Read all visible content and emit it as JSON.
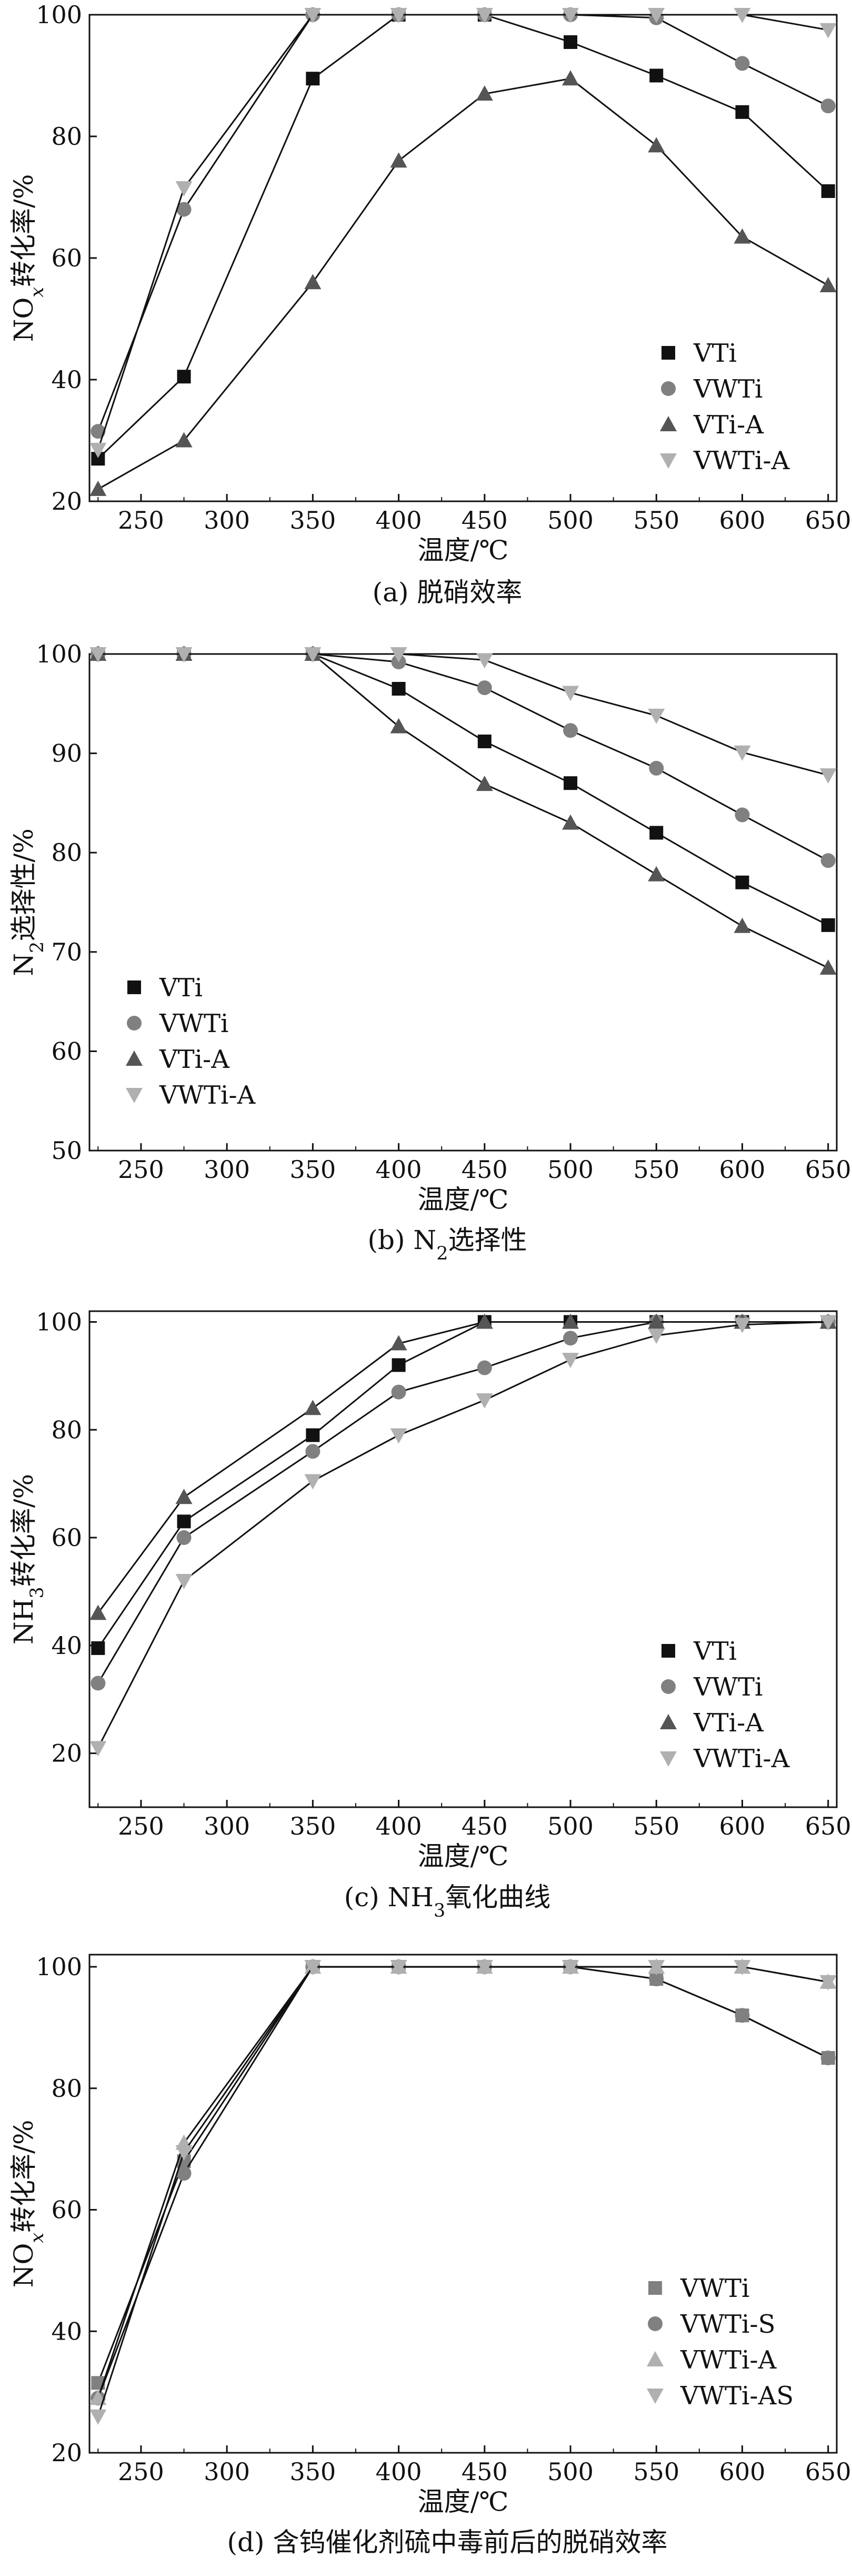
{
  "x_unit_label": "温度/℃",
  "marker_colors": {
    "VTi": "#111111",
    "VWTi": "#808080",
    "VTi-A": "#555555",
    "VWTi-A": "#b0b0b0",
    "VWTi-S": "#808080",
    "VWTi-AS": "#b0b0b0"
  },
  "chart_data": [
    {
      "type": "line",
      "panel": "a",
      "caption": "(a) 脱硝效率",
      "ylabel": "NOx转化率/%",
      "xlabel": "温度/℃",
      "x": [
        225,
        275,
        350,
        400,
        450,
        500,
        550,
        600,
        650
      ],
      "xlim": [
        220,
        655
      ],
      "ylim": [
        20,
        100
      ],
      "xticks": [
        250,
        300,
        350,
        400,
        450,
        500,
        550,
        600,
        650
      ],
      "yticks": [
        20,
        40,
        60,
        80,
        100
      ],
      "legend_position": "bottom-right",
      "series": [
        {
          "name": "VTi",
          "marker": "square",
          "values": [
            27,
            40.5,
            89.5,
            100,
            100,
            95.5,
            90,
            84,
            71
          ]
        },
        {
          "name": "VWTi",
          "marker": "circle",
          "values": [
            31.5,
            68,
            100,
            100,
            100,
            100,
            99.5,
            92,
            85
          ]
        },
        {
          "name": "VTi-A",
          "marker": "triangle-up",
          "values": [
            22,
            30,
            56,
            76,
            87,
            89.5,
            78.5,
            63.5,
            55.5
          ]
        },
        {
          "name": "VWTi-A",
          "marker": "triangle-down",
          "values": [
            28.5,
            71.5,
            100,
            100,
            100,
            100,
            100,
            100,
            97.5
          ]
        }
      ]
    },
    {
      "type": "line",
      "panel": "b",
      "caption": "(b) N2选择性",
      "ylabel": "N2选择性/%",
      "xlabel": "温度/℃",
      "x": [
        225,
        275,
        350,
        400,
        450,
        500,
        550,
        600,
        650
      ],
      "xlim": [
        220,
        655
      ],
      "ylim": [
        50,
        100
      ],
      "xticks": [
        250,
        300,
        350,
        400,
        450,
        500,
        550,
        600,
        650
      ],
      "yticks": [
        50,
        60,
        70,
        80,
        90,
        100
      ],
      "legend_position": "bottom-left",
      "series": [
        {
          "name": "VTi",
          "marker": "square",
          "values": [
            100,
            100,
            100,
            96.5,
            91.2,
            87,
            82,
            77,
            72.7
          ]
        },
        {
          "name": "VWTi",
          "marker": "circle",
          "values": [
            100,
            100,
            100,
            99.2,
            96.6,
            92.3,
            88.5,
            83.8,
            79.2
          ]
        },
        {
          "name": "VTi-A",
          "marker": "triangle-up",
          "values": [
            100,
            100,
            100,
            92.7,
            86.9,
            83,
            77.8,
            72.6,
            68.4
          ]
        },
        {
          "name": "VWTi-A",
          "marker": "triangle-down",
          "values": [
            100,
            100,
            100,
            100,
            99.4,
            96.1,
            93.8,
            90.1,
            87.8
          ]
        }
      ]
    },
    {
      "type": "line",
      "panel": "c",
      "caption": "(c) NH3氧化曲线",
      "ylabel": "NH3转化率/%",
      "xlabel": "温度/℃",
      "x": [
        225,
        275,
        350,
        400,
        450,
        500,
        550,
        600,
        650
      ],
      "xlim": [
        220,
        655
      ],
      "ylim": [
        10,
        102
      ],
      "xticks": [
        250,
        300,
        350,
        400,
        450,
        500,
        550,
        600,
        650
      ],
      "yticks": [
        20,
        40,
        60,
        80,
        100
      ],
      "legend_position": "bottom-right",
      "series": [
        {
          "name": "VTi",
          "marker": "square",
          "values": [
            39.5,
            63,
            79,
            92,
            100,
            100,
            100,
            100,
            100
          ]
        },
        {
          "name": "VWTi",
          "marker": "circle",
          "values": [
            33,
            60,
            76,
            87,
            91.5,
            97,
            100,
            100,
            100
          ]
        },
        {
          "name": "VTi-A",
          "marker": "triangle-up",
          "values": [
            46,
            67.5,
            84,
            96,
            100,
            100,
            100,
            100,
            100
          ]
        },
        {
          "name": "VWTi-A",
          "marker": "triangle-down",
          "values": [
            21,
            52,
            70.5,
            79,
            85.5,
            93,
            97.5,
            99.5,
            100
          ]
        }
      ]
    },
    {
      "type": "line",
      "panel": "d",
      "caption": "(d) 含钨催化剂硫中毒前后的脱硝效率",
      "ylabel": "NOx转化率/%",
      "xlabel": "温度/℃",
      "x": [
        225,
        275,
        350,
        400,
        450,
        500,
        550,
        600,
        650
      ],
      "xlim": [
        220,
        655
      ],
      "ylim": [
        20,
        102
      ],
      "xticks": [
        250,
        300,
        350,
        400,
        450,
        500,
        550,
        600,
        650
      ],
      "yticks": [
        20,
        40,
        60,
        80,
        100
      ],
      "legend_position": "bottom-right",
      "series": [
        {
          "name": "VWTi",
          "marker": "square",
          "values": [
            31.5,
            68,
            100,
            100,
            100,
            100,
            98,
            92,
            85
          ]
        },
        {
          "name": "VWTi-S",
          "marker": "circle",
          "values": [
            29,
            66,
            100,
            100,
            100,
            100,
            98,
            92,
            85
          ]
        },
        {
          "name": "VWTi-A",
          "marker": "triangle-up",
          "values": [
            29,
            71,
            100,
            100,
            100,
            100,
            100,
            100,
            97.5
          ]
        },
        {
          "name": "VWTi-AS",
          "marker": "triangle-down",
          "values": [
            26,
            69.5,
            100,
            100,
            100,
            100,
            100,
            100,
            97.5
          ]
        }
      ]
    }
  ]
}
